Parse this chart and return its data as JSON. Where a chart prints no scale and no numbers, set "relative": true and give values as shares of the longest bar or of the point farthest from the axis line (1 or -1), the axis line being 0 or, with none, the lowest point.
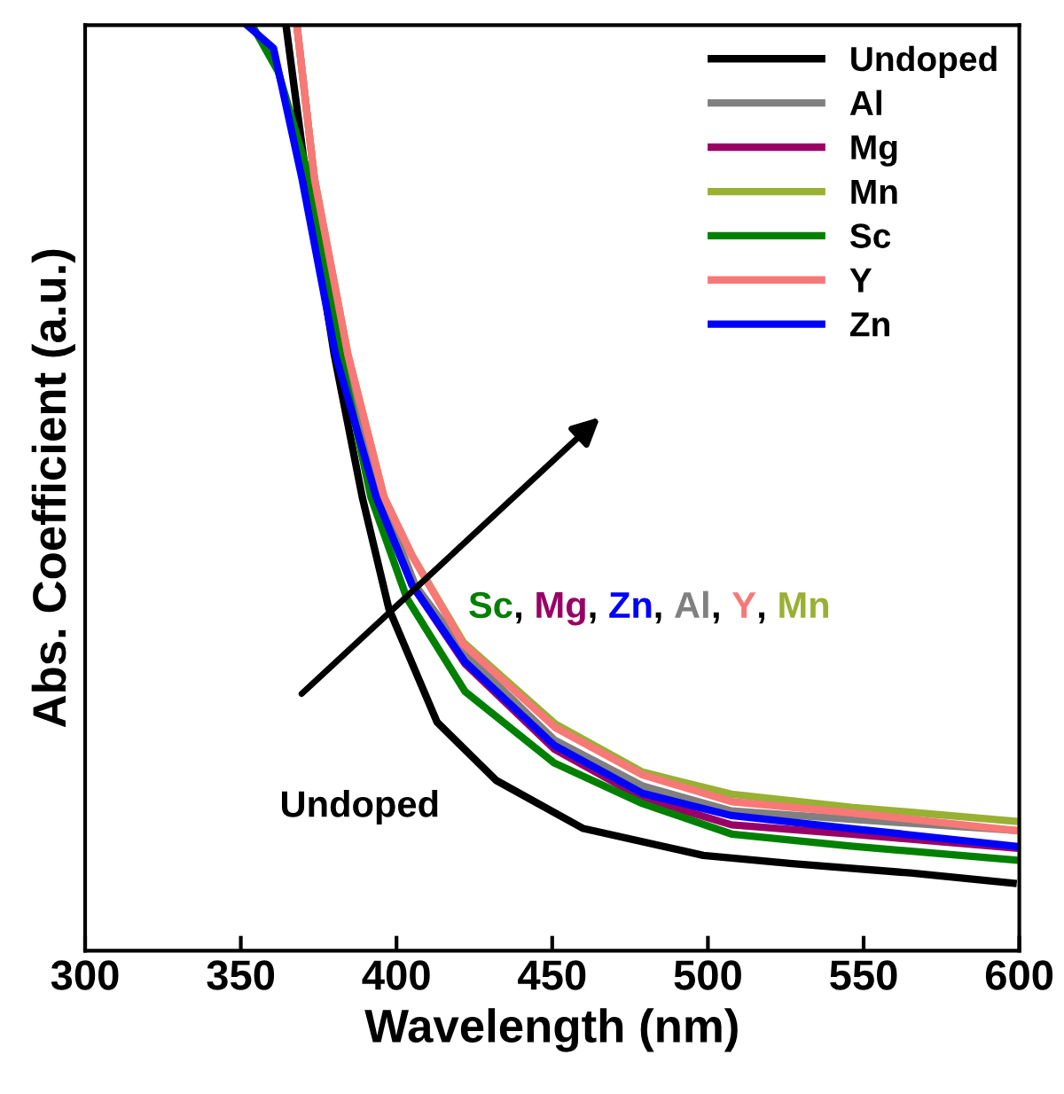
{
  "chart_data": {
    "type": "line",
    "xlabel": "Wavelength (nm)",
    "ylabel": "Abs. Coefficient (a.u.)",
    "relative": true,
    "xlim": [
      300,
      600
    ],
    "xticks": [
      300,
      350,
      400,
      450,
      500,
      550,
      600
    ],
    "legend": "top right",
    "grid": false,
    "marker": "none",
    "line_style": "solid",
    "annotations": [
      "Undoped",
      "Sc, Mg, Zn, Al, Y, Mn"
    ],
    "series": [
      {
        "name": "Undoped",
        "color": "#000000",
        "x": [
          364.5,
          371,
          380,
          389,
          397.5,
          413,
          432,
          460,
          498.5,
          527,
          565,
          598
        ],
        "values": [
          1.0,
          0.835,
          0.644,
          0.49,
          0.37,
          0.247,
          0.184,
          0.132,
          0.103,
          0.094,
          0.084,
          0.073
        ]
      },
      {
        "name": "Al",
        "color": "#808080",
        "x": [
          368,
          373.6,
          383,
          395,
          406,
          423,
          450.6,
          479,
          507.6,
          546,
          598.4
        ],
        "values": [
          1.0,
          0.835,
          0.644,
          0.49,
          0.395,
          0.318,
          0.228,
          0.178,
          0.151,
          0.142,
          0.13
        ]
      },
      {
        "name": "Mg",
        "color": "#990066",
        "x": [
          393.5,
          405,
          422,
          450.6,
          479,
          507.6,
          546,
          598.4
        ],
        "values": [
          0.49,
          0.395,
          0.31,
          0.218,
          0.165,
          0.136,
          0.126,
          0.111
        ]
      },
      {
        "name": "Mn",
        "color": "#99b033",
        "x": [
          368,
          373.6,
          384.4,
          396,
          405,
          421.5,
          451,
          479,
          507.6,
          546,
          598.4
        ],
        "values": [
          1.0,
          0.835,
          0.644,
          0.49,
          0.427,
          0.333,
          0.245,
          0.193,
          0.169,
          0.155,
          0.14
        ]
      },
      {
        "name": "Sc",
        "color": "#008000",
        "x": [
          353.6,
          362,
          372,
          382,
          391.8,
          403.3,
          422,
          450.6,
          479,
          507.6,
          545.9,
          598.4
        ],
        "values": [
          1.0,
          0.95,
          0.835,
          0.644,
          0.49,
          0.381,
          0.28,
          0.203,
          0.159,
          0.126,
          0.113,
          0.098
        ]
      },
      {
        "name": "Y",
        "color": "#f87878",
        "x": [
          368,
          373.6,
          384.4,
          396,
          405,
          421.5,
          451,
          479,
          507.6,
          546,
          598.4
        ],
        "values": [
          1.0,
          0.835,
          0.644,
          0.49,
          0.427,
          0.331,
          0.241,
          0.19,
          0.161,
          0.149,
          0.13
        ]
      },
      {
        "name": "Zn",
        "color": "#0000ff",
        "x": [
          352,
          360.5,
          369.6,
          380.4,
          393.5,
          405,
          422,
          450.6,
          479,
          507.6,
          546,
          598.4
        ],
        "values": [
          1.0,
          0.975,
          0.835,
          0.644,
          0.49,
          0.395,
          0.312,
          0.222,
          0.17,
          0.146,
          0.132,
          0.113
        ]
      }
    ]
  }
}
